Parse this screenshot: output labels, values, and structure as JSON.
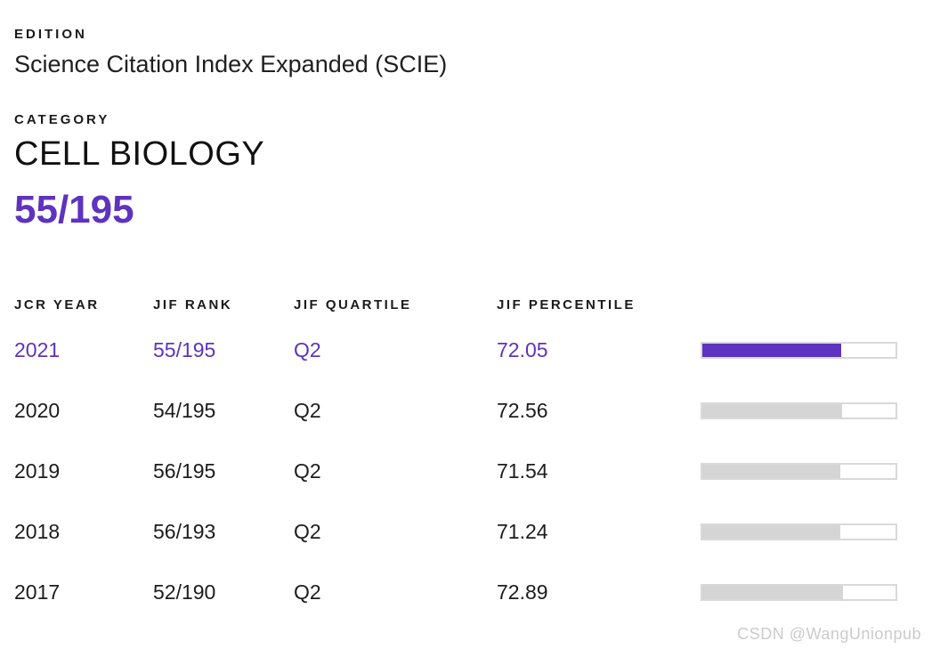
{
  "panel": {
    "edition_label": "EDITION",
    "edition_value": "Science Citation Index Expanded (SCIE)",
    "category_label": "CATEGORY",
    "category_value": "CELL BIOLOGY",
    "current_rank": "55/195"
  },
  "table": {
    "headers": [
      "JCR YEAR",
      "JIF RANK",
      "JIF QUARTILE",
      "JIF PERCENTILE"
    ],
    "rows": [
      {
        "year": "2021",
        "rank": "55/195",
        "quartile": "Q2",
        "percentile": "72.05",
        "highlighted": true
      },
      {
        "year": "2020",
        "rank": "54/195",
        "quartile": "Q2",
        "percentile": "72.56",
        "highlighted": false
      },
      {
        "year": "2019",
        "rank": "56/195",
        "quartile": "Q2",
        "percentile": "71.54",
        "highlighted": false
      },
      {
        "year": "2018",
        "rank": "56/193",
        "quartile": "Q2",
        "percentile": "71.24",
        "highlighted": false
      },
      {
        "year": "2017",
        "rank": "52/190",
        "quartile": "Q2",
        "percentile": "72.89",
        "highlighted": false
      }
    ]
  },
  "colors": {
    "accent": "#5E33BF",
    "bar_gray": "#D5D5D5",
    "track_border": "#D9D9D9"
  },
  "watermark": "CSDN @WangUnionpub"
}
